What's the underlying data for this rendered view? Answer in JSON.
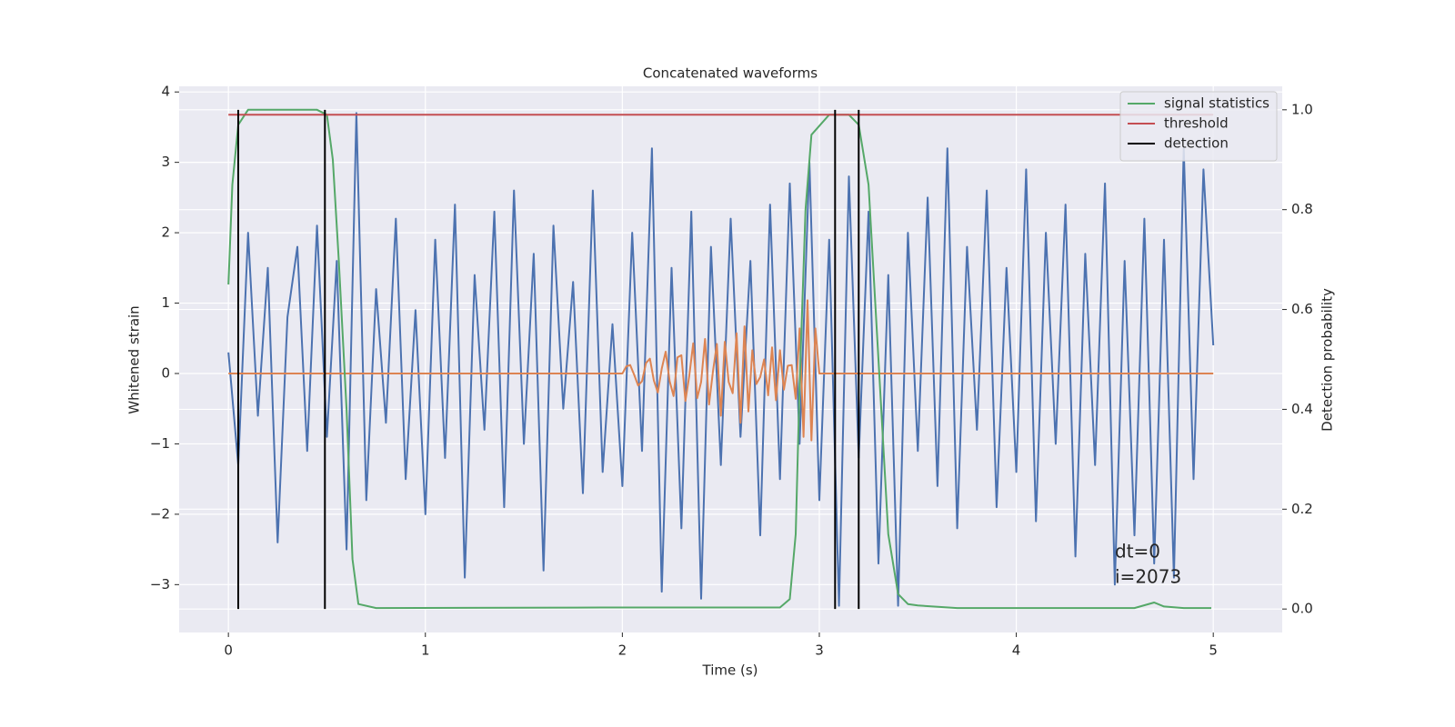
{
  "chart_data": {
    "type": "line",
    "title": "Concatenated waveforms",
    "x_label": "Time (s)",
    "y_label": "Whitened strain",
    "y2_label": "Detection probability",
    "xlim": [
      -0.25,
      5.35
    ],
    "ylim": [
      -3.68,
      4.08
    ],
    "y2lim": [
      -0.047,
      1.047
    ],
    "xticks": [
      0,
      1,
      2,
      3,
      4,
      5
    ],
    "yticks": [
      {
        "value": -3,
        "label": "−3"
      },
      {
        "value": -2,
        "label": "−2"
      },
      {
        "value": -1,
        "label": "−1"
      },
      0,
      1,
      2,
      3,
      4
    ],
    "y2ticks": [
      {
        "value": 0,
        "label": "0.0"
      },
      0.2,
      0.4,
      0.6,
      0.8,
      {
        "value": 1,
        "label": "1.0"
      }
    ],
    "grid": true,
    "legend": "upper right",
    "annotations": [
      "dt=0",
      "i=2073"
    ],
    "series": [
      {
        "color": "#4c72b0",
        "x": [
          0,
          0.05,
          0.1,
          0.15,
          0.2,
          0.25,
          0.3,
          0.35,
          0.4,
          0.45,
          0.5,
          0.55,
          0.6,
          0.65,
          0.7,
          0.75,
          0.8,
          0.85,
          0.9,
          0.95,
          1,
          1.05,
          1.1,
          1.15,
          1.2,
          1.25,
          1.3,
          1.35,
          1.4,
          1.45,
          1.5,
          1.55,
          1.6,
          1.65,
          1.7,
          1.75,
          1.8,
          1.85,
          1.9,
          1.95,
          2,
          2.05,
          2.1,
          2.15,
          2.2,
          2.25,
          2.3,
          2.35,
          2.4,
          2.45,
          2.5,
          2.55,
          2.6,
          2.65,
          2.7,
          2.75,
          2.8,
          2.85,
          2.9,
          2.95,
          3,
          3.05,
          3.1,
          3.15,
          3.2,
          3.25,
          3.3,
          3.35,
          3.4,
          3.45,
          3.5,
          3.55,
          3.6,
          3.65,
          3.7,
          3.75,
          3.8,
          3.85,
          3.9,
          3.95,
          4,
          4.05,
          4.1,
          4.15,
          4.2,
          4.25,
          4.3,
          4.35,
          4.4,
          4.45,
          4.5,
          4.55,
          4.6,
          4.65,
          4.7,
          4.75,
          4.8,
          4.85,
          4.9,
          4.95,
          5
        ],
        "values": [
          0.3,
          -1.3,
          2.0,
          -0.6,
          1.5,
          -2.4,
          0.8,
          1.8,
          -1.1,
          2.1,
          -0.9,
          1.6,
          -2.5,
          3.7,
          -1.8,
          1.2,
          -0.7,
          2.2,
          -1.5,
          0.9,
          -2.0,
          1.9,
          -1.2,
          2.4,
          -2.9,
          1.4,
          -0.8,
          2.3,
          -1.9,
          2.6,
          -1.0,
          1.7,
          -2.8,
          2.1,
          -0.5,
          1.3,
          -1.7,
          2.6,
          -1.4,
          0.7,
          -1.6,
          2.0,
          -1.1,
          3.2,
          -3.1,
          1.5,
          -2.2,
          2.3,
          -3.2,
          1.8,
          -1.3,
          2.2,
          -0.9,
          1.6,
          -2.3,
          2.4,
          -1.5,
          2.7,
          -1.0,
          3.0,
          -1.8,
          1.9,
          -3.3,
          2.8,
          -1.2,
          2.3,
          -2.7,
          1.4,
          -3.3,
          2.0,
          -1.1,
          2.5,
          -1.6,
          3.2,
          -2.2,
          1.8,
          -0.8,
          2.6,
          -1.9,
          1.5,
          -1.4,
          2.9,
          -2.1,
          2.0,
          -1.0,
          2.4,
          -2.6,
          1.7,
          -1.3,
          2.7,
          -3.0,
          1.6,
          -2.3,
          2.2,
          -2.7,
          1.9,
          -2.9,
          3.2,
          -1.5,
          2.9,
          0.4
        ]
      },
      {
        "color": "#dd8452",
        "x": [
          0,
          2,
          2.02,
          2.04,
          2.06,
          2.08,
          2.1,
          2.12,
          2.14,
          2.16,
          2.18,
          2.2,
          2.22,
          2.24,
          2.26,
          2.28,
          2.3,
          2.32,
          2.34,
          2.36,
          2.38,
          2.4,
          2.42,
          2.44,
          2.46,
          2.48,
          2.5,
          2.52,
          2.54,
          2.56,
          2.58,
          2.6,
          2.62,
          2.64,
          2.66,
          2.68,
          2.7,
          2.72,
          2.74,
          2.76,
          2.78,
          2.8,
          2.82,
          2.84,
          2.86,
          2.88,
          2.9,
          2.92,
          2.94,
          2.96,
          2.98,
          3,
          5
        ],
        "values": [
          0,
          0,
          0.1,
          0.12,
          -0.02,
          -0.17,
          -0.11,
          0.15,
          0.21,
          -0.1,
          -0.27,
          0.07,
          0.31,
          -0.11,
          -0.32,
          0.23,
          0.26,
          -0.39,
          -0.03,
          0.43,
          -0.35,
          -0.12,
          0.49,
          -0.44,
          0.03,
          0.42,
          -0.6,
          0.45,
          -0.12,
          -0.28,
          0.57,
          -0.7,
          0.67,
          -0.54,
          0.33,
          -0.15,
          -0.05,
          0.2,
          -0.31,
          0.37,
          -0.38,
          0.33,
          -0.23,
          0.11,
          0.12,
          -0.36,
          0.64,
          -0.9,
          1.04,
          -0.95,
          0.64,
          0,
          0
        ]
      },
      {
        "name": "signal statistics",
        "color": "#55a868",
        "axis": "y2",
        "x": [
          0,
          0.02,
          0.05,
          0.1,
          0.45,
          0.5,
          0.53,
          0.56,
          0.6,
          0.63,
          0.66,
          0.75,
          1.9,
          2.8,
          2.85,
          2.88,
          2.9,
          2.93,
          2.96,
          3.05,
          3.15,
          3.2,
          3.25,
          3.3,
          3.35,
          3.4,
          3.45,
          3.5,
          3.7,
          4.6,
          4.7,
          4.75,
          4.85,
          4.99
        ],
        "values": [
          0.65,
          0.85,
          0.97,
          1.0,
          1.0,
          0.99,
          0.9,
          0.7,
          0.4,
          0.1,
          0.01,
          0.002,
          0.003,
          0.003,
          0.02,
          0.15,
          0.45,
          0.8,
          0.95,
          0.99,
          0.99,
          0.97,
          0.85,
          0.5,
          0.15,
          0.03,
          0.01,
          0.007,
          0.002,
          0.002,
          0.013,
          0.005,
          0.002,
          0.002
        ]
      },
      {
        "name": "threshold",
        "color": "#c44e52",
        "axis": "y2",
        "x": [
          0,
          5
        ],
        "values": [
          0.99,
          0.99
        ]
      },
      {
        "name": "detection",
        "color": "#000000",
        "axis": "y2",
        "style": "vlines",
        "x": [
          0.05,
          0.49,
          3.08,
          3.2
        ],
        "values": [
          1,
          1,
          1,
          1
        ]
      }
    ]
  }
}
